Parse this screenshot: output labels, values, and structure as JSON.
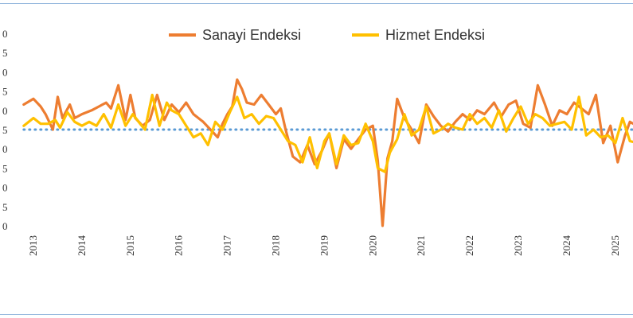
{
  "chart_data": {
    "type": "line",
    "title": "",
    "xlabel": "",
    "ylabel": "",
    "x_tick_labels": [
      "2013",
      "2014",
      "2015",
      "2016",
      "2017",
      "2018",
      "2019",
      "2020",
      "2021",
      "2022",
      "2023",
      "2024",
      "2025"
    ],
    "y_tick_labels": [
      "0",
      "5",
      "0",
      "5",
      "0",
      "5",
      "0",
      "5",
      "0",
      "5",
      "0"
    ],
    "ylim": [
      0,
      10
    ],
    "reference_line": {
      "value": 5,
      "style": "dotted",
      "color": "#5b9bd5"
    },
    "legend_position": "top-center",
    "grid": false,
    "series": [
      {
        "name": "Sanayi Endeksi",
        "color": "#ed7d31",
        "x": [
          2012.8,
          2013.0,
          2013.15,
          2013.25,
          2013.4,
          2013.5,
          2013.6,
          2013.75,
          2013.85,
          2014.0,
          2014.2,
          2014.35,
          2014.5,
          2014.6,
          2014.75,
          2014.9,
          2015.0,
          2015.1,
          2015.25,
          2015.4,
          2015.55,
          2015.7,
          2015.85,
          2016.0,
          2016.15,
          2016.3,
          2016.5,
          2016.65,
          2016.8,
          2016.9,
          2017.0,
          2017.1,
          2017.2,
          2017.3,
          2017.4,
          2017.55,
          2017.7,
          2017.85,
          2018.0,
          2018.1,
          2018.2,
          2018.35,
          2018.5,
          2018.65,
          2018.8,
          2018.95,
          2019.1,
          2019.25,
          2019.4,
          2019.55,
          2019.7,
          2019.85,
          2020.0,
          2020.1,
          2020.2,
          2020.3,
          2020.4,
          2020.5,
          2020.65,
          2020.8,
          2020.95,
          2021.1,
          2021.25,
          2021.4,
          2021.55,
          2021.7,
          2021.85,
          2022.0,
          2022.15,
          2022.3,
          2022.5,
          2022.65,
          2022.8,
          2022.95,
          2023.1,
          2023.25,
          2023.4,
          2023.55,
          2023.7,
          2023.85,
          2024.0,
          2024.15,
          2024.3,
          2024.45,
          2024.6,
          2024.75,
          2024.9,
          2025.05,
          2025.2,
          2025.3,
          2025.45,
          2025.6,
          2025.75
        ],
        "values": [
          6.3,
          6.6,
          6.2,
          5.8,
          5.0,
          6.7,
          5.6,
          6.3,
          5.6,
          5.8,
          6.0,
          6.2,
          6.4,
          6.1,
          7.3,
          5.5,
          6.8,
          5.6,
          5.2,
          5.5,
          6.8,
          5.5,
          6.3,
          5.9,
          6.4,
          5.8,
          5.4,
          5.0,
          4.6,
          5.3,
          5.8,
          6.2,
          7.6,
          7.1,
          6.4,
          6.3,
          6.8,
          6.3,
          5.8,
          6.1,
          5.0,
          3.6,
          3.3,
          4.2,
          3.2,
          3.9,
          4.8,
          3.0,
          4.5,
          4.0,
          4.5,
          5.0,
          5.2,
          3.4,
          0.0,
          3.5,
          4.4,
          6.6,
          5.6,
          5.0,
          4.3,
          6.3,
          5.7,
          5.2,
          4.9,
          5.4,
          5.8,
          5.5,
          6.0,
          5.8,
          6.4,
          5.7,
          6.3,
          6.5,
          5.3,
          5.1,
          7.3,
          6.3,
          5.2,
          6.0,
          5.8,
          6.4,
          6.1,
          5.8,
          6.8,
          4.3,
          5.2,
          3.3,
          4.7,
          5.4,
          5.2,
          3.8,
          4.6
        ]
      },
      {
        "name": "Hizmet Endeksi",
        "color": "#ffc000",
        "x": [
          2012.8,
          2013.0,
          2013.15,
          2013.3,
          2013.45,
          2013.55,
          2013.7,
          2013.85,
          2014.0,
          2014.15,
          2014.3,
          2014.45,
          2014.6,
          2014.75,
          2014.9,
          2015.05,
          2015.2,
          2015.3,
          2015.45,
          2015.6,
          2015.75,
          2015.85,
          2016.0,
          2016.15,
          2016.3,
          2016.45,
          2016.6,
          2016.75,
          2016.9,
          2017.05,
          2017.2,
          2017.35,
          2017.5,
          2017.65,
          2017.8,
          2017.95,
          2018.1,
          2018.25,
          2018.4,
          2018.55,
          2018.7,
          2018.85,
          2019.0,
          2019.1,
          2019.25,
          2019.4,
          2019.55,
          2019.7,
          2019.85,
          2020.0,
          2020.1,
          2020.25,
          2020.35,
          2020.5,
          2020.65,
          2020.8,
          2020.95,
          2021.1,
          2021.25,
          2021.4,
          2021.55,
          2021.7,
          2021.85,
          2022.0,
          2022.15,
          2022.3,
          2022.45,
          2022.6,
          2022.75,
          2022.9,
          2023.05,
          2023.2,
          2023.35,
          2023.5,
          2023.65,
          2023.8,
          2023.95,
          2024.1,
          2024.25,
          2024.4,
          2024.55,
          2024.7,
          2024.85,
          2025.0,
          2025.15,
          2025.3,
          2025.45,
          2025.6,
          2025.75
        ],
        "values": [
          5.2,
          5.6,
          5.3,
          5.3,
          5.5,
          5.1,
          5.9,
          5.4,
          5.2,
          5.4,
          5.2,
          5.8,
          5.1,
          6.3,
          5.2,
          5.8,
          5.3,
          5.0,
          6.8,
          5.2,
          6.4,
          6.0,
          5.8,
          5.2,
          4.6,
          4.8,
          4.2,
          5.4,
          5.0,
          5.9,
          6.7,
          5.6,
          5.8,
          5.3,
          5.7,
          5.6,
          5.0,
          4.4,
          4.2,
          3.3,
          4.6,
          3.0,
          4.4,
          4.8,
          3.2,
          4.7,
          4.2,
          4.3,
          5.3,
          4.4,
          3.0,
          2.8,
          3.8,
          4.5,
          5.8,
          4.7,
          5.0,
          6.2,
          4.8,
          5.0,
          5.3,
          5.1,
          5.0,
          5.8,
          5.3,
          5.6,
          5.1,
          6.0,
          4.9,
          5.6,
          6.2,
          5.3,
          5.8,
          5.6,
          5.2,
          5.3,
          5.4,
          5.0,
          6.7,
          4.7,
          5.0,
          4.6,
          4.7,
          4.3,
          5.6,
          4.4,
          4.3,
          4.3,
          5.3
        ]
      }
    ]
  }
}
